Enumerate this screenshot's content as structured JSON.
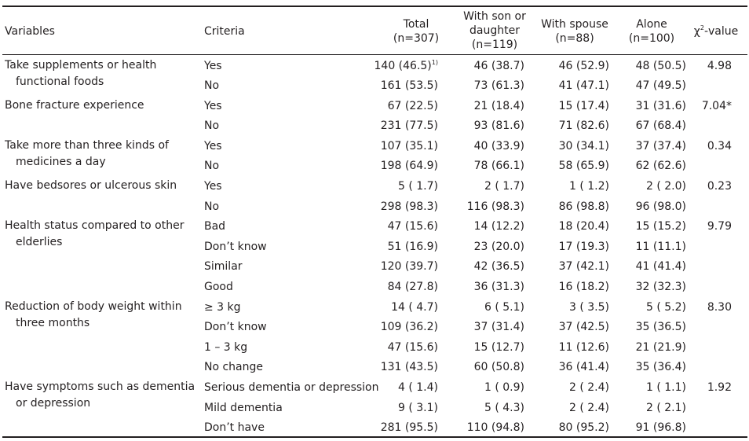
{
  "header": {
    "variables": "Variables",
    "criteria": "Criteria",
    "total_l1": "Total",
    "total_l2": "(n=307)",
    "son_l1": "With son or",
    "son_l2": "daughter",
    "son_l3": "(n=119)",
    "spouse_l1": "With spouse",
    "spouse_l2": "(n=88)",
    "alone_l1": "Alone",
    "alone_l2": "(n=100)",
    "chi_symbol": "χ",
    "chi_sup": "2",
    "chi_rest": "-value"
  },
  "groups": [
    {
      "label_l1": "Take supplements or health",
      "label_l2": "functional foods",
      "chi": "4.98",
      "rows": [
        {
          "criteria": "Yes",
          "total": "140 (46.5)",
          "total_note": "1)",
          "son": "46 (38.7)",
          "spouse": "46 (52.9)",
          "alone": "48 (50.5)"
        },
        {
          "criteria": "No",
          "total": "161 (53.5)",
          "total_note": "",
          "son": "73 (61.3)",
          "spouse": "41 (47.1)",
          "alone": "47 (49.5)"
        }
      ]
    },
    {
      "label_l1": "Bone fracture experience",
      "label_l2": "",
      "chi": "7.04*",
      "rows": [
        {
          "criteria": "Yes",
          "total": "67 (22.5)",
          "total_note": "",
          "son": "21 (18.4)",
          "spouse": "15 (17.4)",
          "alone": "31 (31.6)"
        },
        {
          "criteria": "No",
          "total": "231 (77.5)",
          "total_note": "",
          "son": "93 (81.6)",
          "spouse": "71 (82.6)",
          "alone": "67 (68.4)"
        }
      ]
    },
    {
      "label_l1": "Take more than three kinds of",
      "label_l2": "medicines a day",
      "chi": "0.34",
      "rows": [
        {
          "criteria": "Yes",
          "total": "107 (35.1)",
          "total_note": "",
          "son": "40 (33.9)",
          "spouse": "30 (34.1)",
          "alone": "37 (37.4)"
        },
        {
          "criteria": "No",
          "total": "198 (64.9)",
          "total_note": "",
          "son": "78 (66.1)",
          "spouse": "58 (65.9)",
          "alone": "62 (62.6)"
        }
      ]
    },
    {
      "label_l1": "Have bedsores or ulcerous skin",
      "label_l2": "",
      "chi": "0.23",
      "rows": [
        {
          "criteria": "Yes",
          "total": "5 ( 1.7)",
          "total_note": "",
          "son": "2 ( 1.7)",
          "spouse": "1 ( 1.2)",
          "alone": "2 ( 2.0)"
        },
        {
          "criteria": "No",
          "total": "298 (98.3)",
          "total_note": "",
          "son": "116 (98.3)",
          "spouse": "86 (98.8)",
          "alone": "96 (98.0)"
        }
      ]
    },
    {
      "label_l1": "Health status compared to other",
      "label_l2": "elderlies",
      "chi": "9.79",
      "rows": [
        {
          "criteria": "Bad",
          "total": "47 (15.6)",
          "total_note": "",
          "son": "14 (12.2)",
          "spouse": "18 (20.4)",
          "alone": "15 (15.2)"
        },
        {
          "criteria": "Don’t know",
          "total": "51 (16.9)",
          "total_note": "",
          "son": "23 (20.0)",
          "spouse": "17 (19.3)",
          "alone": "11 (11.1)"
        },
        {
          "criteria": "Similar",
          "total": "120 (39.7)",
          "total_note": "",
          "son": "42 (36.5)",
          "spouse": "37 (42.1)",
          "alone": "41 (41.4)"
        },
        {
          "criteria": "Good",
          "total": "84 (27.8)",
          "total_note": "",
          "son": "36 (31.3)",
          "spouse": "16 (18.2)",
          "alone": "32 (32.3)"
        }
      ]
    },
    {
      "label_l1": "Reduction of body weight within",
      "label_l2": "three months",
      "chi": "8.30",
      "rows": [
        {
          "criteria": "≥ 3 kg",
          "total": "14 ( 4.7)",
          "total_note": "",
          "son": "6 ( 5.1)",
          "spouse": "3 ( 3.5)",
          "alone": "5 ( 5.2)"
        },
        {
          "criteria": "Don’t know",
          "total": "109 (36.2)",
          "total_note": "",
          "son": "37 (31.4)",
          "spouse": "37 (42.5)",
          "alone": "35 (36.5)"
        },
        {
          "criteria": "1 – 3 kg",
          "total": "47 (15.6)",
          "total_note": "",
          "son": "15 (12.7)",
          "spouse": "11 (12.6)",
          "alone": "21 (21.9)"
        },
        {
          "criteria": "No change",
          "total": "131 (43.5)",
          "total_note": "",
          "son": "60 (50.8)",
          "spouse": "36 (41.4)",
          "alone": "35 (36.4)"
        }
      ]
    },
    {
      "label_l1": "Have symptoms such as dementia",
      "label_l2": "or depression",
      "chi": "1.92",
      "rows": [
        {
          "criteria": "Serious dementia or depression",
          "total": "4 ( 1.4)",
          "total_note": "",
          "son": "1 ( 0.9)",
          "spouse": "2 ( 2.4)",
          "alone": "1 ( 1.1)"
        },
        {
          "criteria": "Mild dementia",
          "total": "9 ( 3.1)",
          "total_note": "",
          "son": "5 ( 4.3)",
          "spouse": "2 ( 2.4)",
          "alone": "2 ( 2.1)"
        },
        {
          "criteria": "Don’t have",
          "total": "281 (95.5)",
          "total_note": "",
          "son": "110 (94.8)",
          "spouse": "80 (95.2)",
          "alone": "91 (96.8)"
        }
      ]
    }
  ]
}
